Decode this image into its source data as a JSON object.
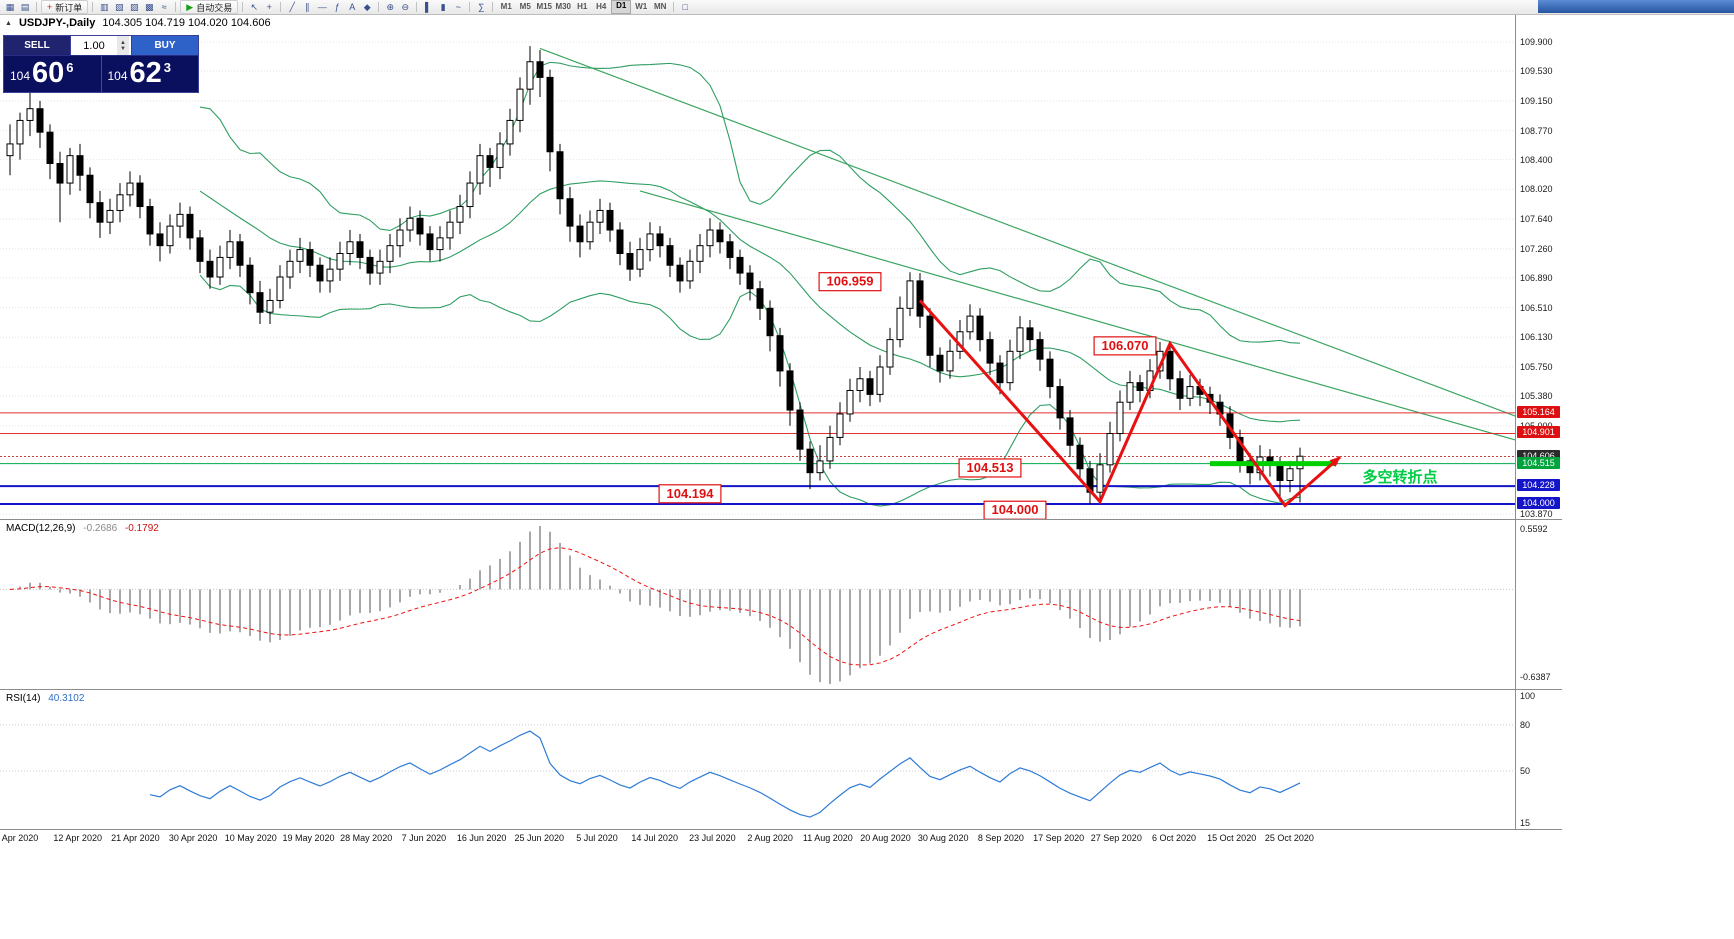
{
  "toolbar": {
    "active_tf": "D1",
    "items": [
      {
        "t": "icon",
        "g": "▦",
        "n": "new-chart-icon"
      },
      {
        "t": "icon",
        "g": "▤",
        "n": "profiles-icon"
      },
      {
        "t": "sep"
      },
      {
        "t": "btn",
        "g": "+",
        "gc": "#cc2222",
        "label": "新订单",
        "n": "new-order-button"
      },
      {
        "t": "sep"
      },
      {
        "t": "icon",
        "g": "▥",
        "n": "market-watch-icon"
      },
      {
        "t": "icon",
        "g": "▧",
        "n": "data-window-icon"
      },
      {
        "t": "icon",
        "g": "▨",
        "n": "navigator-icon"
      },
      {
        "t": "icon",
        "g": "▩",
        "n": "terminal-icon"
      },
      {
        "t": "icon",
        "g": "≈",
        "n": "strategy-tester-icon"
      },
      {
        "t": "sep"
      },
      {
        "t": "btn",
        "g": "▶",
        "gc": "#18a018",
        "label": "自动交易",
        "n": "autotrading-button"
      },
      {
        "t": "sep"
      },
      {
        "t": "icon",
        "g": "↖",
        "n": "cursor-icon"
      },
      {
        "t": "icon",
        "g": "+",
        "n": "crosshair-icon"
      },
      {
        "t": "sep"
      },
      {
        "t": "icon",
        "g": "╱",
        "n": "trendline-icon"
      },
      {
        "t": "icon",
        "g": "∥",
        "n": "channel-icon"
      },
      {
        "t": "icon",
        "g": "—",
        "n": "horizontal-line-icon"
      },
      {
        "t": "icon",
        "g": "ƒ",
        "n": "fibonacci-icon"
      },
      {
        "t": "icon",
        "g": "A",
        "n": "text-label-icon"
      },
      {
        "t": "icon",
        "g": "◆",
        "n": "shapes-icon"
      },
      {
        "t": "sep"
      },
      {
        "t": "icon",
        "g": "⊕",
        "n": "zoom-in-icon"
      },
      {
        "t": "icon",
        "g": "⊖",
        "n": "zoom-out-icon"
      },
      {
        "t": "sep"
      },
      {
        "t": "icon",
        "g": "▌",
        "n": "bar-chart-icon"
      },
      {
        "t": "icon",
        "g": "▮",
        "n": "candlestick-chart-icon"
      },
      {
        "t": "icon",
        "g": "~",
        "n": "line-chart-icon"
      },
      {
        "t": "sep"
      },
      {
        "t": "icon",
        "g": "∑",
        "n": "indicators-icon"
      },
      {
        "t": "sep"
      },
      {
        "t": "tf",
        "label": "M1"
      },
      {
        "t": "tf",
        "label": "M5"
      },
      {
        "t": "tf",
        "label": "M15"
      },
      {
        "t": "tf",
        "label": "M30"
      },
      {
        "t": "tf",
        "label": "H1"
      },
      {
        "t": "tf",
        "label": "H4"
      },
      {
        "t": "tf",
        "label": "D1"
      },
      {
        "t": "tf",
        "label": "W1"
      },
      {
        "t": "tf",
        "label": "MN"
      },
      {
        "t": "sep"
      },
      {
        "t": "icon",
        "g": "□",
        "n": "tile-windows-icon"
      }
    ]
  },
  "symbol_title": {
    "name": "USDJPY-,Daily",
    "ohlc": "104.305 104.719 104.020 104.606"
  },
  "trade_panel": {
    "sell_label": "SELL",
    "buy_label": "BUY",
    "volume": "1.00",
    "sell": {
      "small": "104",
      "big": "60",
      "sup": "6"
    },
    "buy": {
      "small": "104",
      "big": "62",
      "sup": "3"
    }
  },
  "chart_data": {
    "type": "candlestick",
    "symbol": "USDJPY",
    "timeframe": "Daily",
    "candles": [
      [
        108.45,
        108.85,
        108.2,
        108.6
      ],
      [
        108.6,
        109.0,
        108.4,
        108.9
      ],
      [
        108.9,
        109.25,
        108.7,
        109.05
      ],
      [
        109.05,
        109.15,
        108.55,
        108.75
      ],
      [
        108.75,
        108.85,
        108.15,
        108.35
      ],
      [
        108.35,
        108.5,
        107.6,
        108.1
      ],
      [
        108.1,
        108.55,
        107.95,
        108.45
      ],
      [
        108.45,
        108.6,
        108.0,
        108.2
      ],
      [
        108.2,
        108.3,
        107.65,
        107.85
      ],
      [
        107.85,
        108.0,
        107.4,
        107.6
      ],
      [
        107.6,
        107.9,
        107.45,
        107.75
      ],
      [
        107.75,
        108.1,
        107.6,
        107.95
      ],
      [
        107.95,
        108.25,
        107.8,
        108.1
      ],
      [
        108.1,
        108.2,
        107.65,
        107.8
      ],
      [
        107.8,
        107.9,
        107.3,
        107.45
      ],
      [
        107.45,
        107.6,
        107.1,
        107.3
      ],
      [
        107.3,
        107.7,
        107.2,
        107.55
      ],
      [
        107.55,
        107.85,
        107.4,
        107.7
      ],
      [
        107.7,
        107.8,
        107.25,
        107.4
      ],
      [
        107.4,
        107.5,
        106.95,
        107.1
      ],
      [
        107.1,
        107.25,
        106.75,
        106.9
      ],
      [
        106.9,
        107.3,
        106.8,
        107.15
      ],
      [
        107.15,
        107.5,
        107.0,
        107.35
      ],
      [
        107.35,
        107.45,
        106.9,
        107.05
      ],
      [
        107.05,
        107.15,
        106.55,
        106.7
      ],
      [
        106.7,
        106.85,
        106.3,
        106.45
      ],
      [
        106.45,
        106.75,
        106.3,
        106.6
      ],
      [
        106.6,
        107.05,
        106.5,
        106.9
      ],
      [
        106.9,
        107.25,
        106.75,
        107.1
      ],
      [
        107.1,
        107.4,
        106.95,
        107.25
      ],
      [
        107.25,
        107.35,
        106.9,
        107.05
      ],
      [
        107.05,
        107.15,
        106.7,
        106.85
      ],
      [
        106.85,
        107.15,
        106.7,
        107.0
      ],
      [
        107.0,
        107.35,
        106.85,
        107.2
      ],
      [
        107.2,
        107.5,
        107.05,
        107.35
      ],
      [
        107.35,
        107.45,
        107.0,
        107.15
      ],
      [
        107.15,
        107.25,
        106.8,
        106.95
      ],
      [
        106.95,
        107.25,
        106.8,
        107.1
      ],
      [
        107.1,
        107.45,
        106.95,
        107.3
      ],
      [
        107.3,
        107.65,
        107.15,
        107.5
      ],
      [
        107.5,
        107.8,
        107.35,
        107.65
      ],
      [
        107.65,
        107.75,
        107.3,
        107.45
      ],
      [
        107.45,
        107.55,
        107.1,
        107.25
      ],
      [
        107.25,
        107.55,
        107.1,
        107.4
      ],
      [
        107.4,
        107.75,
        107.25,
        107.6
      ],
      [
        107.6,
        107.95,
        107.45,
        107.8
      ],
      [
        107.8,
        108.25,
        107.65,
        108.1
      ],
      [
        108.1,
        108.6,
        107.95,
        108.45
      ],
      [
        108.45,
        108.55,
        108.05,
        108.3
      ],
      [
        108.3,
        108.75,
        108.15,
        108.6
      ],
      [
        108.6,
        109.05,
        108.45,
        108.9
      ],
      [
        108.9,
        109.45,
        108.75,
        109.3
      ],
      [
        109.3,
        109.85,
        109.1,
        109.65
      ],
      [
        109.65,
        109.8,
        109.2,
        109.45
      ],
      [
        109.45,
        109.55,
        108.25,
        108.5
      ],
      [
        108.5,
        108.6,
        107.7,
        107.9
      ],
      [
        107.9,
        108.05,
        107.35,
        107.55
      ],
      [
        107.55,
        107.7,
        107.15,
        107.35
      ],
      [
        107.35,
        107.75,
        107.25,
        107.6
      ],
      [
        107.6,
        107.9,
        107.45,
        107.75
      ],
      [
        107.75,
        107.85,
        107.35,
        107.5
      ],
      [
        107.5,
        107.6,
        107.05,
        107.2
      ],
      [
        107.2,
        107.35,
        106.85,
        107.0
      ],
      [
        107.0,
        107.4,
        106.9,
        107.25
      ],
      [
        107.25,
        107.6,
        107.1,
        107.45
      ],
      [
        107.45,
        107.55,
        107.15,
        107.3
      ],
      [
        107.3,
        107.4,
        106.9,
        107.05
      ],
      [
        107.05,
        107.15,
        106.7,
        106.85
      ],
      [
        106.85,
        107.25,
        106.75,
        107.1
      ],
      [
        107.1,
        107.45,
        106.95,
        107.3
      ],
      [
        107.3,
        107.65,
        107.15,
        107.5
      ],
      [
        107.5,
        107.6,
        107.2,
        107.35
      ],
      [
        107.35,
        107.45,
        107.0,
        107.15
      ],
      [
        107.15,
        107.25,
        106.8,
        106.95
      ],
      [
        106.95,
        107.05,
        106.6,
        106.75
      ],
      [
        106.75,
        106.85,
        106.35,
        106.5
      ],
      [
        106.5,
        106.6,
        105.95,
        106.15
      ],
      [
        106.15,
        106.25,
        105.5,
        105.7
      ],
      [
        105.7,
        105.8,
        105.0,
        105.2
      ],
      [
        105.2,
        105.3,
        104.55,
        104.7
      ],
      [
        104.7,
        104.8,
        104.19,
        104.4
      ],
      [
        104.4,
        104.75,
        104.3,
        104.55
      ],
      [
        104.55,
        105.0,
        104.45,
        104.85
      ],
      [
        104.85,
        105.3,
        104.75,
        105.15
      ],
      [
        105.15,
        105.6,
        105.05,
        105.45
      ],
      [
        105.45,
        105.75,
        105.3,
        105.6
      ],
      [
        105.6,
        105.7,
        105.25,
        105.4
      ],
      [
        105.4,
        105.9,
        105.3,
        105.75
      ],
      [
        105.75,
        106.25,
        105.65,
        106.1
      ],
      [
        106.1,
        106.65,
        106.0,
        106.5
      ],
      [
        106.5,
        106.96,
        106.4,
        106.85
      ],
      [
        106.85,
        106.95,
        106.25,
        106.4
      ],
      [
        106.4,
        106.5,
        105.75,
        105.9
      ],
      [
        105.9,
        106.0,
        105.55,
        105.7
      ],
      [
        105.7,
        106.1,
        105.6,
        105.95
      ],
      [
        105.95,
        106.35,
        105.85,
        106.2
      ],
      [
        106.2,
        106.55,
        106.1,
        106.4
      ],
      [
        106.4,
        106.5,
        105.95,
        106.1
      ],
      [
        106.1,
        106.2,
        105.65,
        105.8
      ],
      [
        105.8,
        105.9,
        105.4,
        105.55
      ],
      [
        105.55,
        106.1,
        105.45,
        105.95
      ],
      [
        105.95,
        106.4,
        105.85,
        106.25
      ],
      [
        106.25,
        106.35,
        105.95,
        106.1
      ],
      [
        106.1,
        106.2,
        105.7,
        105.85
      ],
      [
        105.85,
        105.95,
        105.35,
        105.5
      ],
      [
        105.5,
        105.6,
        104.95,
        105.1
      ],
      [
        105.1,
        105.2,
        104.6,
        104.75
      ],
      [
        104.75,
        104.85,
        104.3,
        104.45
      ],
      [
        104.45,
        104.55,
        104.0,
        104.15
      ],
      [
        104.15,
        104.65,
        104.05,
        104.5
      ],
      [
        104.5,
        105.05,
        104.4,
        104.9
      ],
      [
        104.9,
        105.45,
        104.8,
        105.3
      ],
      [
        105.3,
        105.7,
        105.2,
        105.55
      ],
      [
        105.55,
        105.65,
        105.3,
        105.45
      ],
      [
        105.45,
        105.85,
        105.35,
        105.7
      ],
      [
        105.7,
        106.07,
        105.6,
        105.95
      ],
      [
        105.95,
        106.05,
        105.45,
        105.6
      ],
      [
        105.6,
        105.7,
        105.2,
        105.35
      ],
      [
        105.35,
        105.65,
        105.25,
        105.5
      ],
      [
        105.5,
        105.6,
        105.25,
        105.4
      ],
      [
        105.4,
        105.5,
        105.15,
        105.3
      ],
      [
        105.3,
        105.4,
        105.0,
        105.15
      ],
      [
        105.15,
        105.25,
        104.7,
        104.85
      ],
      [
        104.85,
        104.95,
        104.4,
        104.55
      ],
      [
        104.55,
        104.65,
        104.25,
        104.4
      ],
      [
        104.4,
        104.75,
        104.3,
        104.6
      ],
      [
        104.6,
        104.7,
        104.35,
        104.5
      ],
      [
        104.5,
        104.6,
        104.03,
        104.3
      ],
      [
        104.3,
        104.55,
        104.15,
        104.45
      ],
      [
        104.45,
        104.72,
        104.02,
        104.61
      ]
    ],
    "price_axis": {
      "labels": [
        "109.900",
        "109.530",
        "109.150",
        "108.770",
        "108.400",
        "108.020",
        "107.640",
        "107.260",
        "106.890",
        "106.510",
        "106.130",
        "105.750",
        "105.380",
        "105.000",
        "103.870"
      ],
      "badges": [
        {
          "text": "105.164",
          "bg": "#dd1111"
        },
        {
          "text": "104.901",
          "bg": "#dd1111"
        },
        {
          "text": "104.606",
          "bg": "#2b2b2b"
        },
        {
          "text": "104.515",
          "bg": "#00a33c"
        },
        {
          "text": "104.228",
          "bg": "#1414c8"
        },
        {
          "text": "104.000",
          "bg": "#1414c8"
        }
      ]
    },
    "levels": [
      {
        "price": 105.164,
        "color": "#e03030",
        "w": 1
      },
      {
        "price": 104.901,
        "color": "#e03030",
        "w": 1
      },
      {
        "price": 104.606,
        "color": "#c04040",
        "w": 1,
        "dash": "2,2"
      },
      {
        "price": 104.515,
        "color": "#00a84a",
        "w": 1
      },
      {
        "price": 104.228,
        "color": "#1414c8",
        "w": 2
      },
      {
        "price": 104.0,
        "color": "#1414c8",
        "w": 2
      }
    ],
    "trendlines": [
      {
        "p1": [
          53,
          109.82
        ],
        "p2": [
          151,
          105.1
        ],
        "color": "#3aa45f"
      },
      {
        "p1": [
          63,
          108.0
        ],
        "p2": [
          151,
          104.8
        ],
        "color": "#3aa45f"
      }
    ],
    "zigzag": {
      "color": "#e81010",
      "width": 3,
      "points": [
        [
          91,
          106.6
        ],
        [
          109,
          104.03
        ],
        [
          116,
          106.05
        ],
        [
          127.5,
          103.98
        ],
        [
          133,
          104.6
        ]
      ]
    },
    "highlight_segment": {
      "i1": 120,
      "i2": 132.5,
      "price": 104.515,
      "color": "#00d000",
      "width": 5
    },
    "annotations": [
      {
        "text": "106.959",
        "i": 84,
        "p": 106.84,
        "box": true
      },
      {
        "text": "106.070",
        "i": 111.5,
        "p": 106.02,
        "box": true
      },
      {
        "text": "104.513",
        "i": 98,
        "p": 104.46,
        "box": true
      },
      {
        "text": "104.194",
        "i": 68,
        "p": 104.13,
        "box": true
      },
      {
        "text": "104.000",
        "i": 100.5,
        "p": 103.92,
        "box": true
      },
      {
        "text": "多空转折点",
        "i": 139,
        "p": 104.33,
        "box": false,
        "color": "#00cc44",
        "size": 15
      }
    ],
    "indicators": {
      "bollinger": {
        "period": 20,
        "deviation": 2,
        "color": "#2f9e63"
      },
      "macd": {
        "name": "MACD(12,26,9)",
        "value1": "-0.2686",
        "value2": "-0.1792",
        "axis": [
          "0.5592",
          "-0.6387"
        ]
      },
      "rsi": {
        "name": "RSI(14)",
        "value": "40.3102",
        "axis": [
          {
            "text": "100",
            "v": 100
          },
          {
            "text": "80",
            "v": 80
          },
          {
            "text": "50",
            "v": 50
          },
          {
            "text": "15",
            "v": 15
          }
        ],
        "levels": [
          80,
          50
        ],
        "color": "#2e7bd6"
      }
    },
    "dates": [
      "Apr 2020",
      "12 Apr 2020",
      "21 Apr 2020",
      "30 Apr 2020",
      "10 May 2020",
      "19 May 2020",
      "28 May 2020",
      "7 Jun 2020",
      "16 Jun 2020",
      "25 Jun 2020",
      "5 Jul 2020",
      "14 Jul 2020",
      "23 Jul 2020",
      "2 Aug 2020",
      "11 Aug 2020",
      "20 Aug 2020",
      "30 Aug 2020",
      "8 Sep 2020",
      "17 Sep 2020",
      "27 Sep 2020",
      "6 Oct 2020",
      "15 Oct 2020",
      "25 Oct 2020"
    ]
  }
}
